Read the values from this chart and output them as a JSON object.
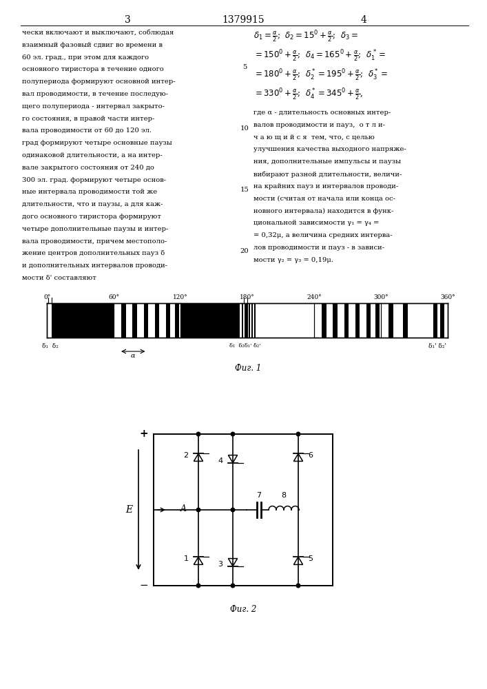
{
  "page_title": "1379915",
  "page_left_num": "3",
  "page_right_num": "4",
  "bg_color": "#ffffff",
  "text_color": "#000000",
  "left_text_lines": [
    "чески включают и выключают, соблюдая",
    "взаимный фазовый сдвиг во времени в",
    "60 эл. град., при этом для каждого",
    "основного тиристора в течение одного",
    "полупериода формируют основной интер-",
    "вал проводимости, в течение последую-",
    "щего полупериода - интервал закрыто-",
    "го состояния, в правой части интер-",
    "вала проводимости от 60 до 120 эл.",
    "град формируют четыре основные паузы",
    "одинаковой длительности, а на интер-",
    "вале закрытого состояния от 240 до",
    "300 эл. град. формируют четыре основ-",
    "ные интервала проводимости той же",
    "длительности, что и паузы, а для каж-",
    "дого основного тиристора формируют",
    "четыре дополнительные паузы и интер-",
    "вала проводимости, причем местополо-",
    "жение центров дополнительных пауз δ",
    "и дополнительных интервалов проводи-",
    "мости δ' составляют"
  ],
  "right_formula_lines": [
    "δ₁ = α/2;  δ₂ = 15° + α/2;  δ₃ =",
    "= 150° + α/2;  δ₄ = 165° + α/2;  δ₁* =",
    "= 180° + α/2;  δ₂* = 195° + α/2;  δ₃* =",
    "= 330° + α/2;  δ₄* = 345° + α/2,"
  ],
  "right_text_lines": [
    "где α - длительность основных интер-",
    "валов проводимости и пауз,  о т л и-",
    "ч а ю щ и й с я  тем, что, с целью",
    "улучшения качества выходного напряже-",
    "ния, дополнительные импульсы и паузы",
    "вибирают разной длительности, величи-",
    "на крайних пауз и интервалов проводи-",
    "мости (считая от начала или конца ос-",
    "новного интервала) находится в функ-",
    "циональной зависимости γ₁ = γ₄ =",
    "= 0,32μ, а величина средних интерва-",
    "лов проводимости и пауз - в зависи-",
    "мости γ₂ = γ₃ = 0,19μ."
  ],
  "line_numbers": [
    5,
    10,
    15,
    20
  ],
  "line_number_rows": [
    3,
    8,
    13,
    18
  ],
  "fig1_caption": "Фиг. 1",
  "fig2_caption": "Фиг. 2",
  "fig1_angles": [
    0,
    60,
    120,
    180,
    240,
    300,
    360
  ],
  "fig1_angle_labels": [
    "0°",
    "60°",
    "120°",
    "180°",
    "240°",
    "300°",
    "360°"
  ]
}
